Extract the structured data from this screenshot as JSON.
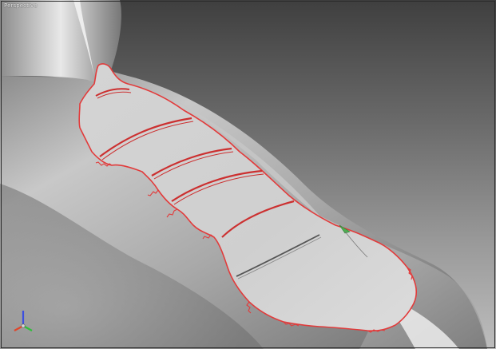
{
  "viewport": {
    "view_label": "Perspective"
  },
  "colors": {
    "boundary": "#e23b3b",
    "section_curve": "#cc3030",
    "surface_light": "#e6e6e6",
    "surface_dark": "#5a5a5a",
    "axis_x": "#e0462a",
    "axis_y": "#2fbf3a",
    "axis_z": "#3c4fe0"
  },
  "icons": {
    "view_triad": "axis-triad-icon"
  }
}
